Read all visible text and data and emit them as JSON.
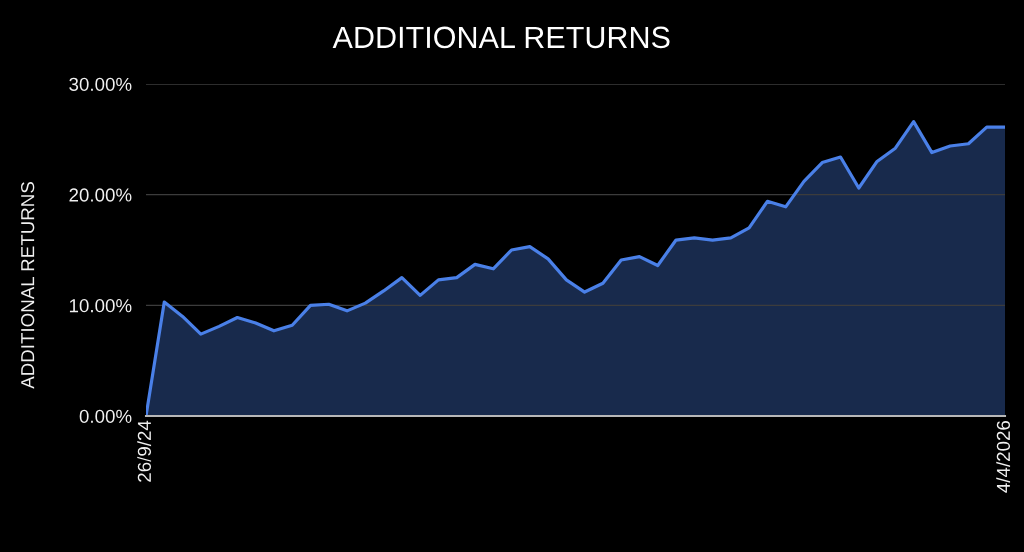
{
  "chart_data": {
    "type": "area",
    "title": "ADDITIONAL RETURNS",
    "ylabel": "ADDITIONAL RETURNS",
    "categories": [
      "26/9/24",
      null,
      null,
      null,
      null,
      null,
      null,
      null,
      null,
      null,
      null,
      null,
      null,
      null,
      null,
      null,
      null,
      null,
      null,
      null,
      null,
      null,
      null,
      null,
      null,
      null,
      null,
      null,
      null,
      null,
      null,
      null,
      null,
      null,
      null,
      null,
      null,
      null,
      null,
      null,
      null,
      null,
      null,
      null,
      null,
      null,
      null,
      "4/4/2026"
    ],
    "series": [
      {
        "color": "#4a80e8",
        "values": [
          0,
          10.3,
          9.0,
          7.4,
          8.1,
          8.9,
          8.4,
          7.7,
          8.2,
          10.0,
          10.1,
          9.5,
          10.2,
          11.3,
          12.5,
          10.9,
          12.3,
          12.5,
          13.7,
          13.3,
          15.0,
          15.3,
          14.2,
          12.3,
          11.2,
          12.0,
          14.1,
          14.4,
          13.6,
          15.9,
          16.1,
          15.9,
          16.1,
          17.0,
          19.4,
          18.9,
          21.2,
          22.9,
          23.4,
          20.6,
          23.0,
          24.2,
          26.6,
          23.8,
          24.4,
          24.6,
          26.1,
          26.1
        ]
      }
    ],
    "ylim": [
      0,
      30
    ],
    "yticks": [
      {
        "value": 0,
        "label": "0.00%"
      },
      {
        "value": 10,
        "label": "10.00%"
      },
      {
        "value": 20,
        "label": "20.00%"
      },
      {
        "value": 30,
        "label": "30.00%"
      }
    ],
    "grid": "y"
  }
}
